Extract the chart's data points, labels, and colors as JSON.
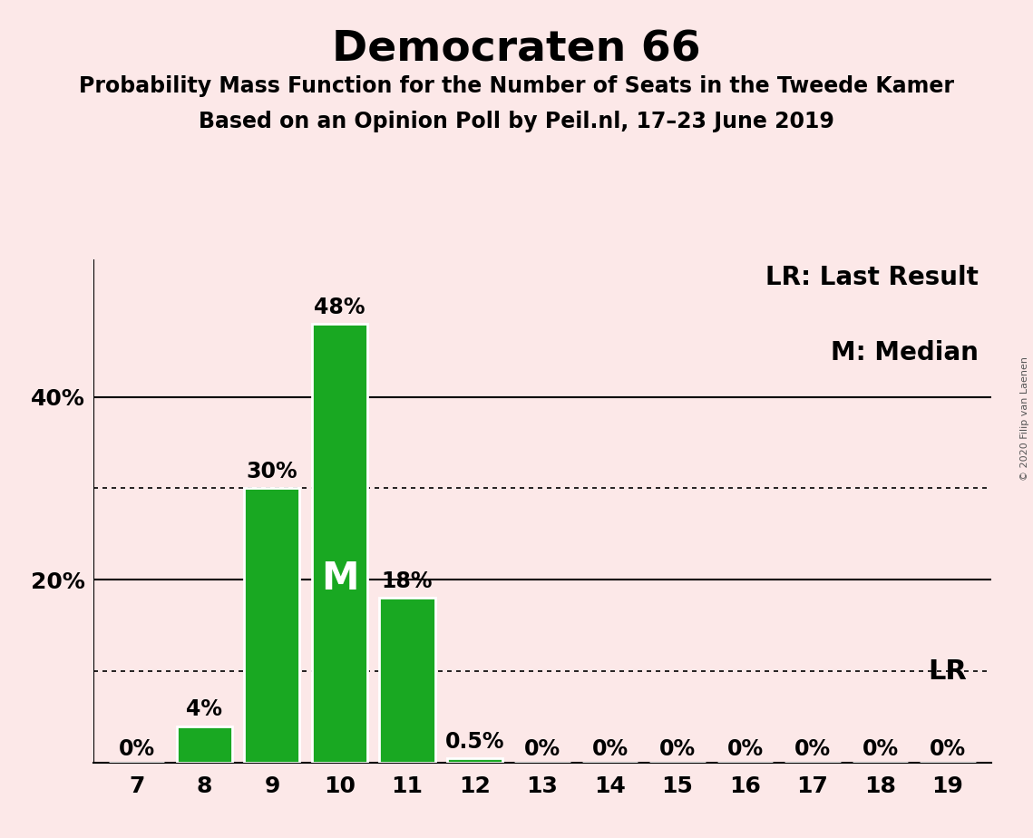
{
  "title": "Democraten 66",
  "subtitle1": "Probability Mass Function for the Number of Seats in the Tweede Kamer",
  "subtitle2": "Based on an Opinion Poll by Peil.nl, 17–23 June 2019",
  "copyright": "© 2020 Filip van Laenen",
  "seats": [
    7,
    8,
    9,
    10,
    11,
    12,
    13,
    14,
    15,
    16,
    17,
    18,
    19
  ],
  "probabilities": [
    0.0,
    4.0,
    30.0,
    48.0,
    18.0,
    0.5,
    0.0,
    0.0,
    0.0,
    0.0,
    0.0,
    0.0,
    0.0
  ],
  "bar_labels": [
    "0%",
    "4%",
    "30%",
    "48%",
    "18%",
    "0.5%",
    "0%",
    "0%",
    "0%",
    "0%",
    "0%",
    "0%",
    "0%"
  ],
  "bar_color": "#19a822",
  "background_color": "#fce8e8",
  "median_seat": 10,
  "median_label": "M",
  "lr_seat": 19,
  "lr_label": "LR",
  "legend_lr": "LR: Last Result",
  "legend_m": "M: Median",
  "ylim": [
    0,
    55
  ],
  "solid_yticks": [
    20,
    40
  ],
  "dotted_yticks": [
    10,
    30
  ],
  "title_fontsize": 34,
  "subtitle_fontsize": 17,
  "axis_tick_fontsize": 18,
  "bar_label_fontsize": 17,
  "legend_fontsize": 20,
  "median_label_fontsize": 30,
  "lr_label_fontsize": 22,
  "copyright_fontsize": 8
}
